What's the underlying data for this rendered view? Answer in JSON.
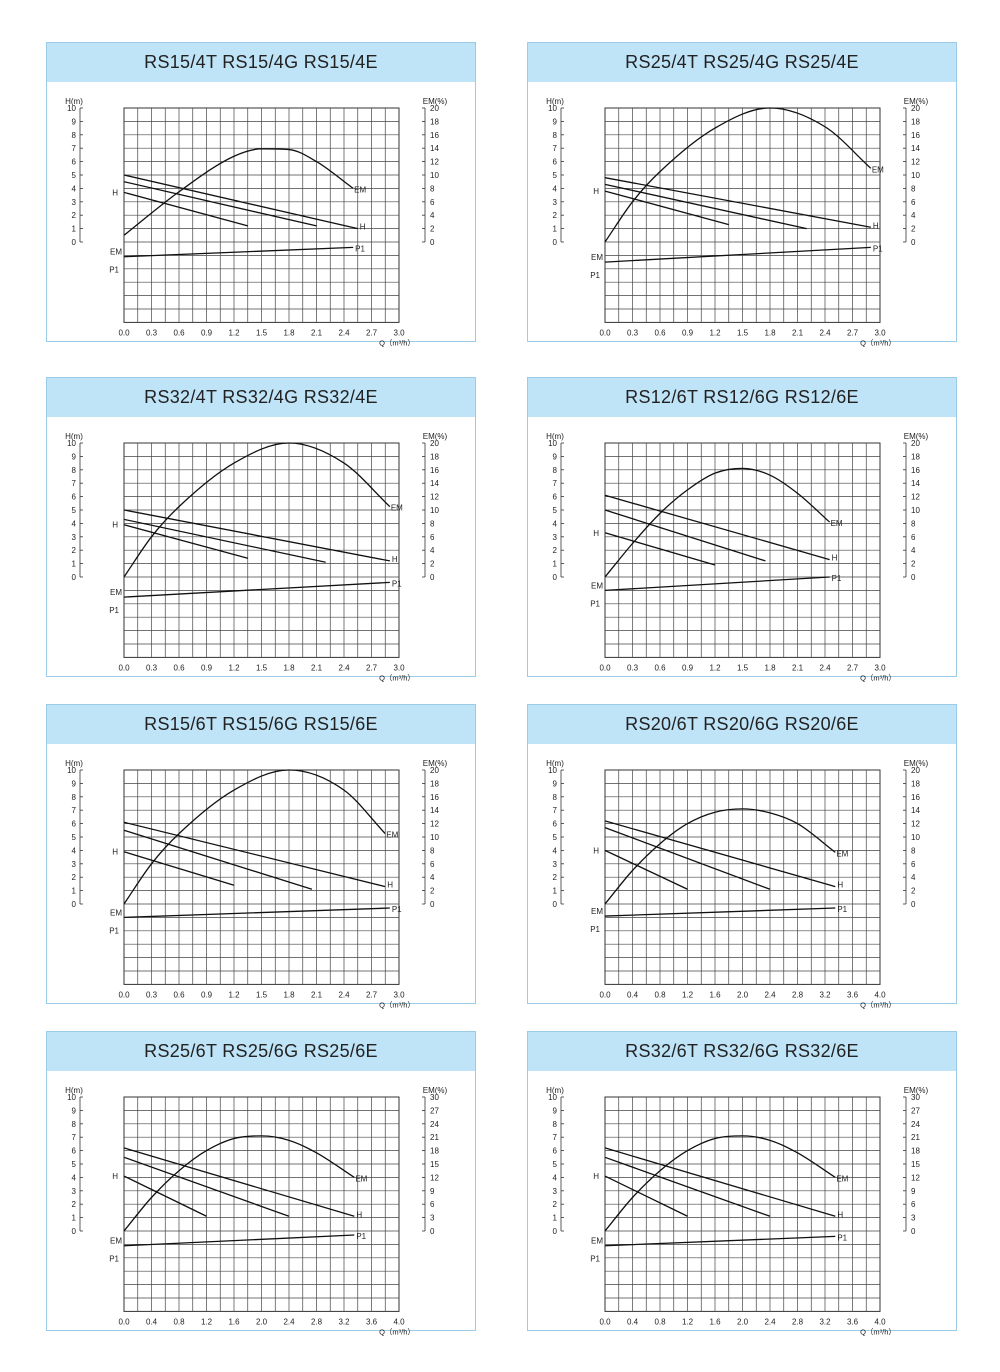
{
  "chart_data": [
    {
      "type": "line",
      "title": "RS15/4T RS15/4G RS15/4E",
      "y_left_label": "H(m)",
      "y_right_label": "EM(%)",
      "x_label": "Q（m³/h）",
      "x_ticks": [
        "0.0",
        "0.3",
        "0.6",
        "0.9",
        "1.2",
        "1.5",
        "1.8",
        "2.1",
        "2.4",
        "2.7",
        "3.0"
      ],
      "y_left_ticks": [
        "0",
        "1",
        "2",
        "3",
        "4",
        "5",
        "6",
        "7",
        "8",
        "9",
        "10"
      ],
      "y_right_ticks": [
        "0",
        "2",
        "4",
        "6",
        "8",
        "10",
        "12",
        "14",
        "16",
        "18",
        "20"
      ],
      "xlim": [
        0,
        3.0
      ],
      "ylim_left": [
        0,
        10
      ],
      "ylim_right": [
        0,
        20
      ],
      "series_labels": {
        "H": "H",
        "EM": "EM",
        "P1": "P1"
      },
      "H_curves": [
        {
          "x": [
            0,
            1.35
          ],
          "y": [
            3.7,
            1.2
          ]
        },
        {
          "x": [
            0,
            2.1
          ],
          "y": [
            4.5,
            1.2
          ]
        },
        {
          "x": [
            0,
            2.55
          ],
          "y": [
            5.0,
            1.0
          ]
        }
      ],
      "EM_curve": {
        "x": [
          0,
          0.6,
          1.2,
          1.5,
          1.8,
          2.1,
          2.5
        ],
        "y": [
          1.0,
          7.5,
          12.8,
          13.9,
          13.8,
          12.0,
          8.0
        ]
      },
      "P1_curve": {
        "x": [
          0,
          2.5
        ],
        "y": [
          -1.1,
          -0.4
        ]
      }
    },
    {
      "type": "line",
      "title": "RS25/4T RS25/4G RS25/4E",
      "y_left_label": "H(m)",
      "y_right_label": "EM(%)",
      "x_label": "Q（m³/h）",
      "x_ticks": [
        "0.0",
        "0.3",
        "0.6",
        "0.9",
        "1.2",
        "1.5",
        "1.8",
        "2.1",
        "2.4",
        "2.7",
        "3.0"
      ],
      "y_left_ticks": [
        "0",
        "1",
        "2",
        "3",
        "4",
        "5",
        "6",
        "7",
        "8",
        "9",
        "10"
      ],
      "y_right_ticks": [
        "0",
        "2",
        "4",
        "6",
        "8",
        "10",
        "12",
        "14",
        "16",
        "18",
        "20"
      ],
      "xlim": [
        0,
        3.0
      ],
      "ylim_left": [
        0,
        10
      ],
      "ylim_right": [
        0,
        20
      ],
      "series_labels": {
        "H": "H",
        "EM": "EM",
        "P1": "P1"
      },
      "H_curves": [
        {
          "x": [
            0,
            1.35
          ],
          "y": [
            3.8,
            1.3
          ]
        },
        {
          "x": [
            0,
            2.2
          ],
          "y": [
            4.3,
            1.0
          ]
        },
        {
          "x": [
            0,
            2.9
          ],
          "y": [
            4.8,
            1.1
          ]
        }
      ],
      "EM_curve": {
        "x": [
          0,
          0.3,
          0.6,
          1.2,
          1.8,
          2.4,
          2.9
        ],
        "y": [
          0,
          6.0,
          10.5,
          17.0,
          20.0,
          17.2,
          11.0
        ]
      },
      "P1_curve": {
        "x": [
          0,
          2.9
        ],
        "y": [
          -1.5,
          -0.4
        ]
      }
    },
    {
      "type": "line",
      "title": "RS32/4T RS32/4G RS32/4E",
      "y_left_label": "H(m)",
      "y_right_label": "EM(%)",
      "x_label": "Q（m³/h）",
      "x_ticks": [
        "0.0",
        "0.3",
        "0.6",
        "0.9",
        "1.2",
        "1.5",
        "1.8",
        "2.1",
        "2.4",
        "2.7",
        "3.0"
      ],
      "y_left_ticks": [
        "0",
        "1",
        "2",
        "3",
        "4",
        "5",
        "6",
        "7",
        "8",
        "9",
        "10"
      ],
      "y_right_ticks": [
        "0",
        "2",
        "4",
        "6",
        "8",
        "10",
        "12",
        "14",
        "16",
        "18",
        "20"
      ],
      "xlim": [
        0,
        3.0
      ],
      "ylim_left": [
        0,
        10
      ],
      "ylim_right": [
        0,
        20
      ],
      "series_labels": {
        "H": "H",
        "EM": "EM",
        "P1": "P1"
      },
      "H_curves": [
        {
          "x": [
            0,
            1.35
          ],
          "y": [
            3.9,
            1.4
          ]
        },
        {
          "x": [
            0,
            2.2
          ],
          "y": [
            4.3,
            1.1
          ]
        },
        {
          "x": [
            0,
            2.9
          ],
          "y": [
            5.0,
            1.2
          ]
        }
      ],
      "EM_curve": {
        "x": [
          0,
          0.3,
          0.6,
          1.2,
          1.8,
          2.4,
          2.9
        ],
        "y": [
          0,
          6.0,
          10.5,
          17.0,
          20.0,
          17.0,
          10.5
        ]
      },
      "P1_curve": {
        "x": [
          0,
          2.9
        ],
        "y": [
          -1.5,
          -0.4
        ]
      }
    },
    {
      "type": "line",
      "title": "RS12/6T RS12/6G RS12/6E",
      "y_left_label": "H(m)",
      "y_right_label": "EM(%)",
      "x_label": "Q（m³/h）",
      "x_ticks": [
        "0.0",
        "0.3",
        "0.6",
        "0.9",
        "1.2",
        "1.5",
        "1.8",
        "2.1",
        "2.4",
        "2.7",
        "3.0"
      ],
      "y_left_ticks": [
        "0",
        "1",
        "2",
        "3",
        "4",
        "5",
        "6",
        "7",
        "8",
        "9",
        "10"
      ],
      "y_right_ticks": [
        "0",
        "2",
        "4",
        "6",
        "8",
        "10",
        "12",
        "14",
        "16",
        "18",
        "20"
      ],
      "xlim": [
        0,
        3.0
      ],
      "ylim_left": [
        0,
        10
      ],
      "ylim_right": [
        0,
        20
      ],
      "series_labels": {
        "H": "H",
        "EM": "EM",
        "P1": "P1"
      },
      "H_curves": [
        {
          "x": [
            0,
            1.2
          ],
          "y": [
            3.3,
            0.9
          ]
        },
        {
          "x": [
            0,
            1.75
          ],
          "y": [
            5.0,
            1.2
          ]
        },
        {
          "x": [
            0,
            2.45
          ],
          "y": [
            6.1,
            1.3
          ]
        }
      ],
      "EM_curve": {
        "x": [
          0,
          0.3,
          0.6,
          0.9,
          1.2,
          1.5,
          1.8,
          2.1,
          2.45
        ],
        "y": [
          0,
          5.0,
          9.5,
          13.0,
          15.5,
          16.2,
          15.2,
          12.5,
          8.2
        ]
      },
      "P1_curve": {
        "x": [
          0,
          2.45
        ],
        "y": [
          -1.0,
          0
        ]
      }
    },
    {
      "type": "line",
      "title": "RS15/6T RS15/6G RS15/6E",
      "y_left_label": "H(m)",
      "y_right_label": "EM(%)",
      "x_label": "Q（m³/h）",
      "x_ticks": [
        "0.0",
        "0.3",
        "0.6",
        "0.9",
        "1.2",
        "1.5",
        "1.8",
        "2.1",
        "2.4",
        "2.7",
        "3.0"
      ],
      "y_left_ticks": [
        "0",
        "1",
        "2",
        "3",
        "4",
        "5",
        "6",
        "7",
        "8",
        "9",
        "10"
      ],
      "y_right_ticks": [
        "0",
        "2",
        "4",
        "6",
        "8",
        "10",
        "12",
        "14",
        "16",
        "18",
        "20"
      ],
      "xlim": [
        0,
        3.0
      ],
      "ylim_left": [
        0,
        10
      ],
      "ylim_right": [
        0,
        20
      ],
      "series_labels": {
        "H": "H",
        "EM": "EM",
        "P1": "P1"
      },
      "H_curves": [
        {
          "x": [
            0,
            1.2
          ],
          "y": [
            3.9,
            1.4
          ]
        },
        {
          "x": [
            0,
            2.05
          ],
          "y": [
            5.5,
            1.1
          ]
        },
        {
          "x": [
            0,
            2.85
          ],
          "y": [
            6.1,
            1.3
          ]
        }
      ],
      "EM_curve": {
        "x": [
          0,
          0.3,
          0.6,
          1.2,
          1.8,
          2.4,
          2.85
        ],
        "y": [
          0,
          6.0,
          10.5,
          17.0,
          20.0,
          17.0,
          10.5
        ]
      },
      "P1_curve": {
        "x": [
          0,
          2.9
        ],
        "y": [
          -1.0,
          -0.3
        ]
      }
    },
    {
      "type": "line",
      "title": "RS20/6T RS20/6G RS20/6E",
      "y_left_label": "H(m)",
      "y_right_label": "EM(%)",
      "x_label": "Q（m³/h）",
      "x_ticks": [
        "0.0",
        "0.4",
        "0.8",
        "1.2",
        "1.6",
        "2.0",
        "2.4",
        "2.8",
        "3.2",
        "3.6",
        "4.0"
      ],
      "y_left_ticks": [
        "0",
        "1",
        "2",
        "3",
        "4",
        "5",
        "6",
        "7",
        "8",
        "9",
        "10"
      ],
      "y_right_ticks": [
        "0",
        "2",
        "4",
        "6",
        "8",
        "10",
        "12",
        "14",
        "16",
        "18",
        "20"
      ],
      "xlim": [
        0,
        4.0
      ],
      "ylim_left": [
        0,
        10
      ],
      "ylim_right": [
        0,
        20
      ],
      "series_labels": {
        "H": "H",
        "EM": "EM",
        "P1": "P1"
      },
      "H_curves": [
        {
          "x": [
            0,
            1.2
          ],
          "y": [
            4.0,
            1.1
          ]
        },
        {
          "x": [
            0,
            2.4
          ],
          "y": [
            5.7,
            1.1
          ]
        },
        {
          "x": [
            0,
            3.35
          ],
          "y": [
            6.2,
            1.3
          ]
        }
      ],
      "EM_curve": {
        "x": [
          0,
          0.4,
          0.8,
          1.2,
          1.6,
          2.0,
          2.4,
          2.8,
          3.35
        ],
        "y": [
          0,
          5.0,
          9.0,
          12.0,
          13.7,
          14.2,
          13.6,
          12.0,
          7.7
        ]
      },
      "P1_curve": {
        "x": [
          0,
          3.35
        ],
        "y": [
          -0.9,
          -0.3
        ]
      }
    },
    {
      "type": "line",
      "title": "RS25/6T RS25/6G RS25/6E",
      "y_left_label": "H(m)",
      "y_right_label": "EM(%)",
      "x_label": "Q（m³/h）",
      "x_ticks": [
        "0.0",
        "0.4",
        "0.8",
        "1.2",
        "1.6",
        "2.0",
        "2.4",
        "2.8",
        "3.2",
        "3.6",
        "4.0"
      ],
      "y_left_ticks": [
        "0",
        "1",
        "2",
        "3",
        "4",
        "5",
        "6",
        "7",
        "8",
        "9",
        "10"
      ],
      "y_right_ticks": [
        "0",
        "3",
        "6",
        "9",
        "12",
        "15",
        "18",
        "21",
        "24",
        "27",
        "30"
      ],
      "xlim": [
        0,
        4.0
      ],
      "ylim_left": [
        0,
        10
      ],
      "ylim_right": [
        0,
        30
      ],
      "series_labels": {
        "H": "H",
        "EM": "EM",
        "P1": "P1"
      },
      "H_curves": [
        {
          "x": [
            0,
            1.2
          ],
          "y": [
            4.1,
            1.1
          ]
        },
        {
          "x": [
            0,
            2.4
          ],
          "y": [
            5.5,
            1.1
          ]
        },
        {
          "x": [
            0,
            3.35
          ],
          "y": [
            6.2,
            1.1
          ]
        }
      ],
      "EM_curve": {
        "x": [
          0,
          0.4,
          0.8,
          1.2,
          1.6,
          2.0,
          2.4,
          2.8,
          3.35
        ],
        "y": [
          0,
          7.5,
          13.5,
          18.0,
          20.7,
          21.3,
          20.3,
          17.5,
          12.0
        ]
      },
      "P1_curve": {
        "x": [
          0,
          3.35
        ],
        "y": [
          -1.1,
          -0.3
        ]
      }
    },
    {
      "type": "line",
      "title": "RS32/6T RS32/6G RS32/6E",
      "y_left_label": "H(m)",
      "y_right_label": "EM(%)",
      "x_label": "Q（m³/h）",
      "x_ticks": [
        "0.0",
        "0.4",
        "0.8",
        "1.2",
        "1.6",
        "2.0",
        "2.4",
        "2.8",
        "3.2",
        "3.6",
        "4.0"
      ],
      "y_left_ticks": [
        "0",
        "1",
        "2",
        "3",
        "4",
        "5",
        "6",
        "7",
        "8",
        "9",
        "10"
      ],
      "y_right_ticks": [
        "0",
        "3",
        "6",
        "9",
        "12",
        "15",
        "18",
        "21",
        "24",
        "27",
        "30"
      ],
      "xlim": [
        0,
        4.0
      ],
      "ylim_left": [
        0,
        10
      ],
      "ylim_right": [
        0,
        30
      ],
      "series_labels": {
        "H": "H",
        "EM": "EM",
        "P1": "P1"
      },
      "H_curves": [
        {
          "x": [
            0,
            1.2
          ],
          "y": [
            4.1,
            1.1
          ]
        },
        {
          "x": [
            0,
            2.4
          ],
          "y": [
            5.5,
            1.1
          ]
        },
        {
          "x": [
            0,
            3.35
          ],
          "y": [
            6.2,
            1.1
          ]
        }
      ],
      "EM_curve": {
        "x": [
          0,
          0.4,
          0.8,
          1.2,
          1.6,
          2.0,
          2.4,
          2.8,
          3.35
        ],
        "y": [
          0,
          7.5,
          13.5,
          18.0,
          20.7,
          21.3,
          20.3,
          17.5,
          12.0
        ]
      },
      "P1_curve": {
        "x": [
          0,
          3.35
        ],
        "y": [
          -1.1,
          -0.4
        ]
      }
    }
  ]
}
